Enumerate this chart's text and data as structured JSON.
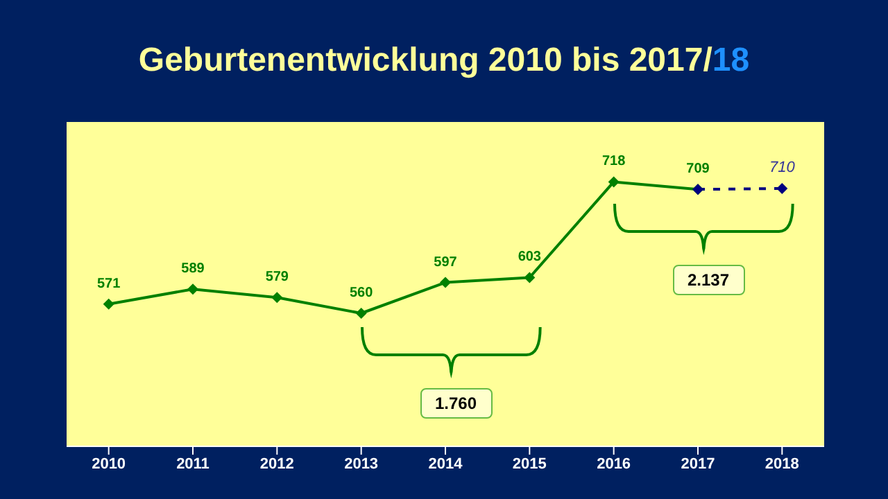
{
  "chart_data": {
    "type": "line",
    "title": "Geburtenentwicklung 2010 bis 2017/18",
    "categories": [
      "2010",
      "2011",
      "2012",
      "2013",
      "2014",
      "2015",
      "2016",
      "2017",
      "2018"
    ],
    "series": [
      {
        "color": "#008000",
        "line_style": "solid",
        "values": [
          571,
          589,
          579,
          560,
          597,
          603,
          718,
          709,
          null
        ],
        "value_labels": [
          "571",
          "589",
          "579",
          "560",
          "597",
          "603",
          "718",
          "709",
          null
        ]
      },
      {
        "color": "#000080",
        "line_style": "dashed",
        "values": [
          null,
          null,
          null,
          null,
          null,
          null,
          null,
          709,
          710
        ],
        "value_labels": [
          null,
          null,
          null,
          null,
          null,
          null,
          null,
          null,
          "710"
        ]
      }
    ],
    "marker": "diamond",
    "ylim": [
      400,
      790
    ],
    "tick_labels": "x",
    "grid": false,
    "legend": false,
    "annotations": [
      "1.760",
      "2.137"
    ]
  }
}
